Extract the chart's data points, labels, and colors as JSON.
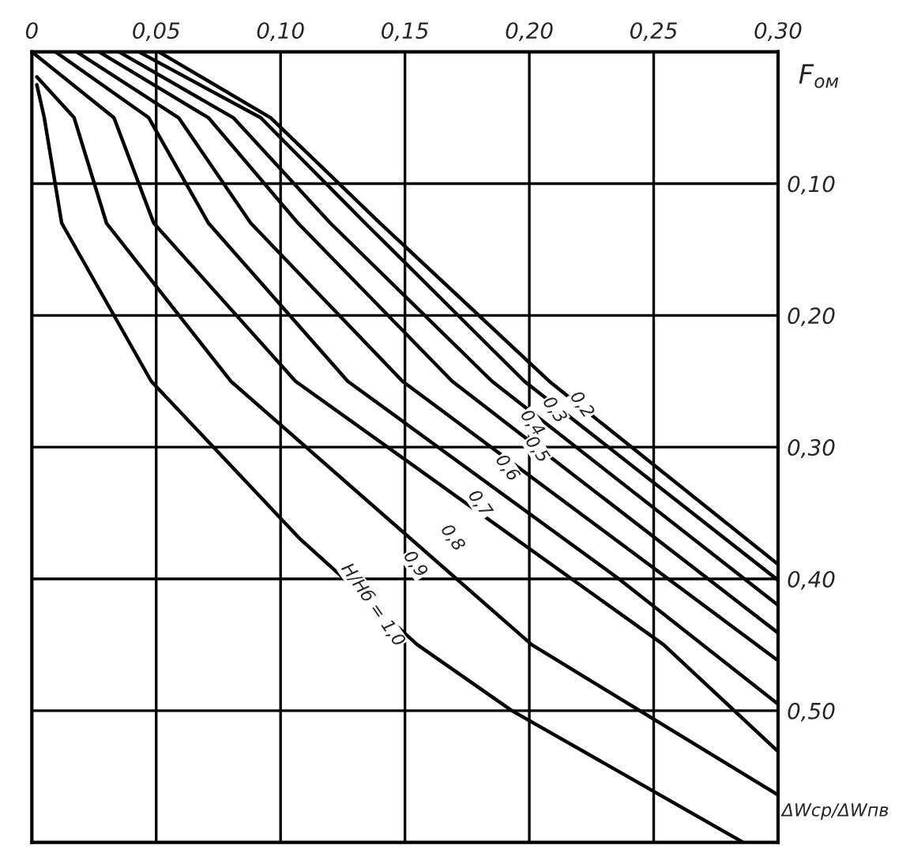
{
  "chart_data": {
    "type": "line",
    "xlabel": "F$_{ом}$",
    "ylabel": "ΔWср/ΔWпв",
    "xlim": [
      0,
      0.3
    ],
    "ylim": [
      0.6,
      0
    ],
    "xticks": [
      {
        "value": 0,
        "label": "0"
      },
      {
        "value": 0.05,
        "label": "0,05"
      },
      {
        "value": 0.1,
        "label": "0,10"
      },
      {
        "value": 0.15,
        "label": "0,15"
      },
      {
        "value": 0.2,
        "label": "0,20"
      },
      {
        "value": 0.25,
        "label": "0,25"
      },
      {
        "value": 0.3,
        "label": "0,30"
      }
    ],
    "yticks": [
      {
        "value": 0.1,
        "label": "0,10"
      },
      {
        "value": 0.2,
        "label": "0,20"
      },
      {
        "value": 0.3,
        "label": "0,30"
      },
      {
        "value": 0.4,
        "label": "0,40"
      },
      {
        "value": 0.5,
        "label": "0,50"
      }
    ],
    "grid": true,
    "marker": "none",
    "line_style": "solid",
    "legend": false,
    "series": [
      {
        "color": "#000000",
        "x": [
          0.051,
          0.096,
          0.14,
          0.208,
          0.3
        ],
        "values": [
          0,
          0.05,
          0.13,
          0.25,
          0.389
        ]
      },
      {
        "color": "#000000",
        "x": [
          0.043,
          0.092,
          0.134,
          0.198,
          0.3
        ],
        "values": [
          0,
          0.05,
          0.13,
          0.25,
          0.401
        ]
      },
      {
        "color": "#000000",
        "x": [
          0.035,
          0.081,
          0.12,
          0.185,
          0.3
        ],
        "values": [
          0,
          0.05,
          0.13,
          0.25,
          0.42
        ]
      },
      {
        "color": "#000000",
        "x": [
          0.027,
          0.071,
          0.107,
          0.169,
          0.3
        ],
        "values": [
          0,
          0.05,
          0.13,
          0.25,
          0.441
        ]
      },
      {
        "color": "#000000",
        "x": [
          0.018,
          0.059,
          0.088,
          0.149,
          0.3
        ],
        "values": [
          0,
          0.05,
          0.13,
          0.25,
          0.462
        ]
      },
      {
        "color": "#000000",
        "x": [
          0.0095,
          0.047,
          0.071,
          0.127,
          0.236,
          0.3
        ],
        "values": [
          0,
          0.05,
          0.13,
          0.25,
          0.4,
          0.495
        ]
      },
      {
        "color": "#000000",
        "x": [
          0,
          0.033,
          0.049,
          0.106,
          0.254,
          0.3
        ],
        "values": [
          0,
          0.05,
          0.13,
          0.25,
          0.45,
          0.531
        ]
      },
      {
        "color": "#000000",
        "x": [
          0.002,
          0.017,
          0.03,
          0.08,
          0.201,
          0.3
        ],
        "values": [
          0.019,
          0.05,
          0.13,
          0.25,
          0.45,
          0.564
        ]
      },
      {
        "color": "#000000",
        "x": [
          0.002,
          0.005,
          0.012,
          0.048,
          0.108,
          0.155,
          0.193,
          0.286
        ],
        "values": [
          0.025,
          0.05,
          0.13,
          0.25,
          0.37,
          0.45,
          0.5,
          0.6
        ]
      }
    ],
    "annotations": [
      {
        "text": "0,2",
        "x": 0.221,
        "y": 0.268
      },
      {
        "text": "0,3",
        "x": 0.21,
        "y": 0.272
      },
      {
        "text": "0,4",
        "x": 0.201,
        "y": 0.282
      },
      {
        "text": "0,5",
        "x": 0.203,
        "y": 0.302
      },
      {
        "text": "0,6",
        "x": 0.191,
        "y": 0.316
      },
      {
        "text": "0,7",
        "x": 0.18,
        "y": 0.343
      },
      {
        "text": "0,8",
        "x": 0.169,
        "y": 0.369
      },
      {
        "text": "0,9",
        "x": 0.154,
        "y": 0.389
      },
      {
        "text": "H/Hб = 1,0",
        "x": 0.137,
        "y": 0.42
      }
    ]
  }
}
